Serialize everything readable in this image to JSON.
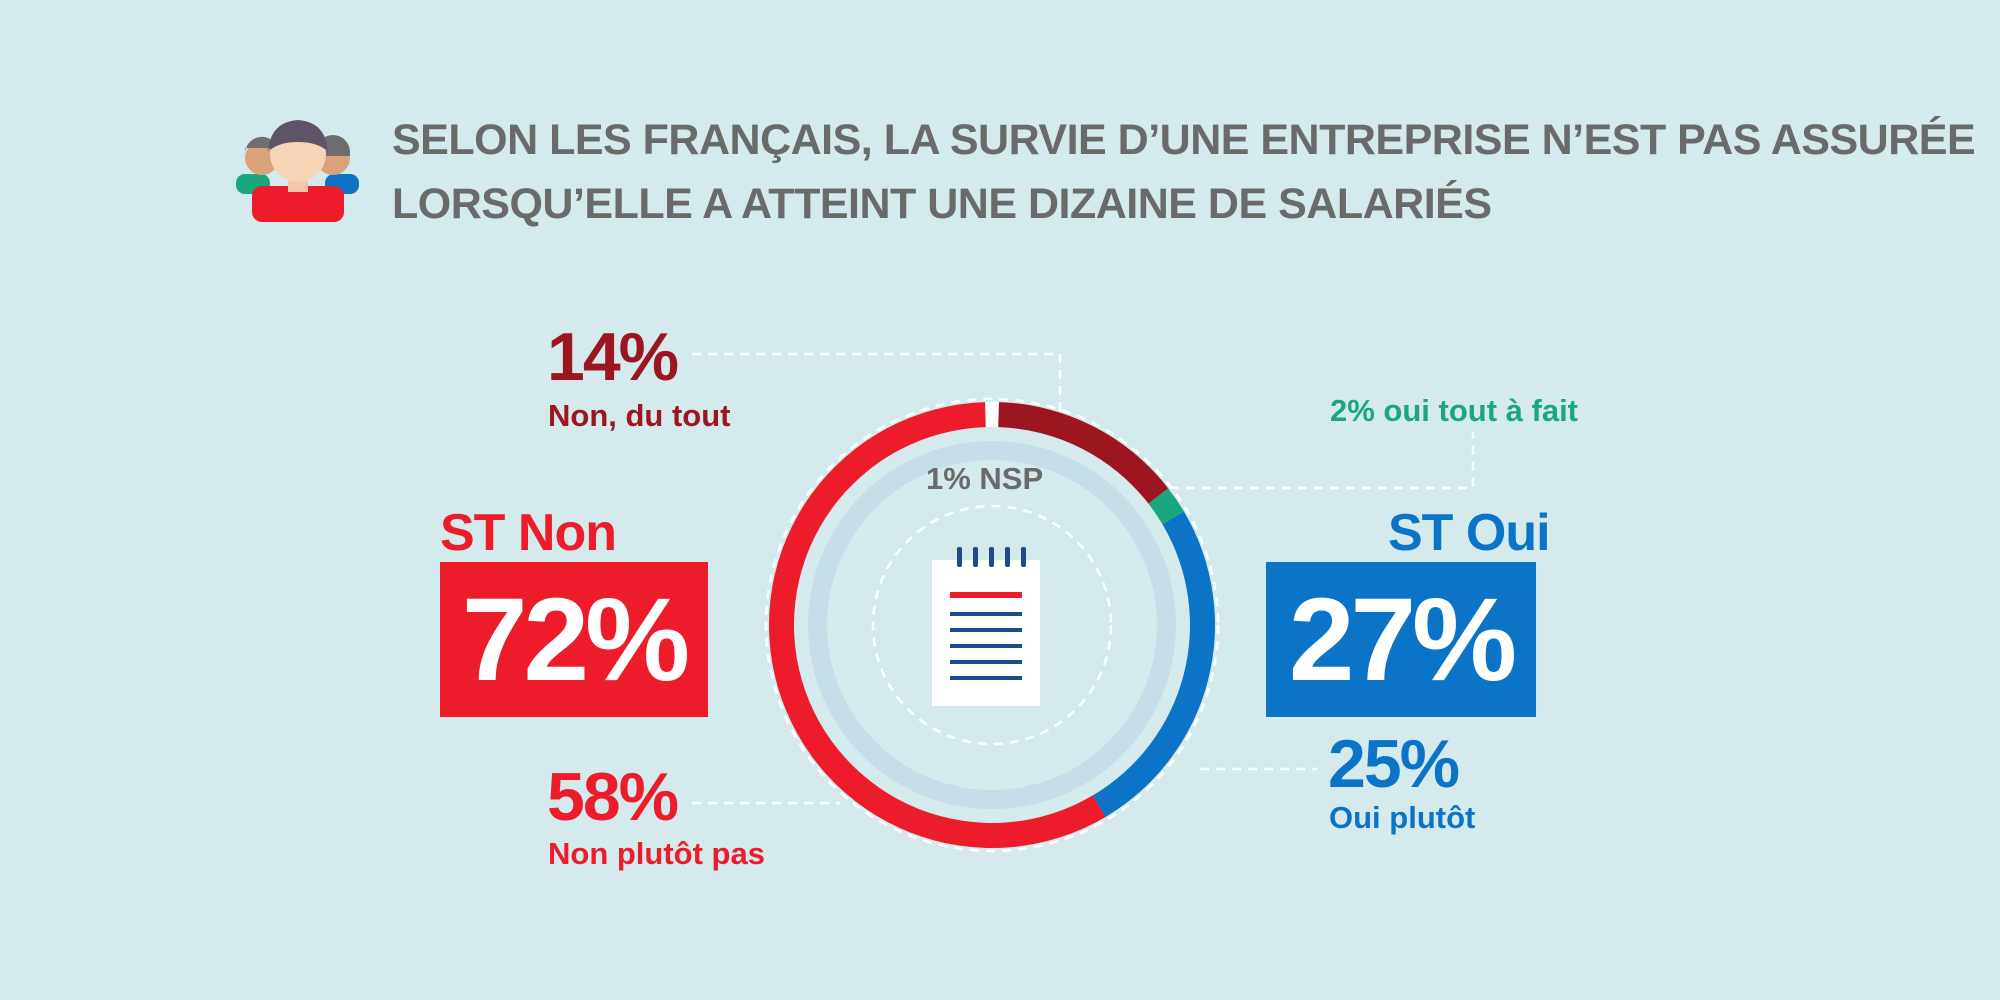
{
  "title": {
    "line1": "SELON LES FRANÇAIS, LA SURVIE D’UNE ENTREPRISE N’EST PAS ASSURÉE",
    "line2": "LORSQU’ELLE A ATTEINT UNE DIZAINE DE SALARIÉS"
  },
  "icons": {
    "header": "people-group-icon",
    "center": "document-notepad-icon"
  },
  "colors": {
    "non_du_tout": "#9b1620",
    "non_plutot_pas": "#ec1c2b",
    "oui_tout_a_fait": "#1aa77e",
    "oui_plutot": "#0b74c6",
    "nsp": "#ffffff",
    "title": "#6a6a6a",
    "background": "#d6ebee"
  },
  "totals": {
    "st_non_label": "ST Non",
    "st_non_value": "72%",
    "st_oui_label": "ST Oui",
    "st_oui_value": "27%"
  },
  "labels": {
    "non_du_tout_pct": "14%",
    "non_du_tout_caption": "Non, du tout",
    "non_plutot_pas_pct": "58%",
    "non_plutot_pas_caption": "Non plutôt pas",
    "oui_tout_a_fait": "2% oui tout à fait",
    "oui_plutot_pct": "25%",
    "oui_plutot_caption": "Oui plutôt",
    "nsp": "1% NSP"
  },
  "chart_data": {
    "type": "pie",
    "variant": "donut",
    "slices": [
      {
        "label": "NSP",
        "value": 1
      },
      {
        "label": "Non, du tout",
        "value": 14
      },
      {
        "label": "oui tout à fait",
        "value": 2
      },
      {
        "label": "Oui plutôt",
        "value": 25
      },
      {
        "label": "Non plutôt pas",
        "value": 58
      }
    ],
    "subtotals": [
      {
        "label": "ST Non",
        "value": 72
      },
      {
        "label": "ST Oui",
        "value": 27
      }
    ]
  }
}
